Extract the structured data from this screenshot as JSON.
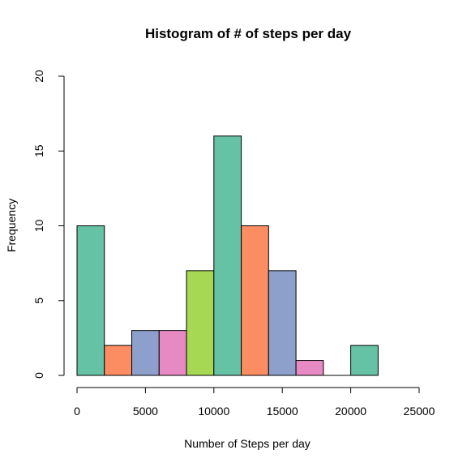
{
  "chart_data": {
    "type": "bar",
    "title": "Histogram of # of steps per day",
    "xlabel": "Number of Steps per day",
    "ylabel": "Frequency",
    "bins": [
      {
        "x0": 0,
        "x1": 2000,
        "count": 10,
        "color": "#66c2a5"
      },
      {
        "x0": 2000,
        "x1": 4000,
        "count": 2,
        "color": "#fc8d62"
      },
      {
        "x0": 4000,
        "x1": 6000,
        "count": 3,
        "color": "#8da0cb"
      },
      {
        "x0": 6000,
        "x1": 8000,
        "count": 3,
        "color": "#e78ac3"
      },
      {
        "x0": 8000,
        "x1": 10000,
        "count": 7,
        "color": "#a6d854"
      },
      {
        "x0": 10000,
        "x1": 12000,
        "count": 16,
        "color": "#66c2a5"
      },
      {
        "x0": 12000,
        "x1": 14000,
        "count": 10,
        "color": "#fc8d62"
      },
      {
        "x0": 14000,
        "x1": 16000,
        "count": 7,
        "color": "#8da0cb"
      },
      {
        "x0": 16000,
        "x1": 18000,
        "count": 1,
        "color": "#e78ac3"
      },
      {
        "x0": 18000,
        "x1": 20000,
        "count": 0,
        "color": "#a6d854"
      },
      {
        "x0": 20000,
        "x1": 22000,
        "count": 2,
        "color": "#66c2a5"
      }
    ],
    "xlim": [
      0,
      25000
    ],
    "ylim": [
      0,
      20
    ],
    "xticks": [
      0,
      5000,
      10000,
      15000,
      20000,
      25000
    ],
    "yticks": [
      0,
      5,
      10,
      15,
      20
    ],
    "grid": false,
    "legend": "none"
  }
}
